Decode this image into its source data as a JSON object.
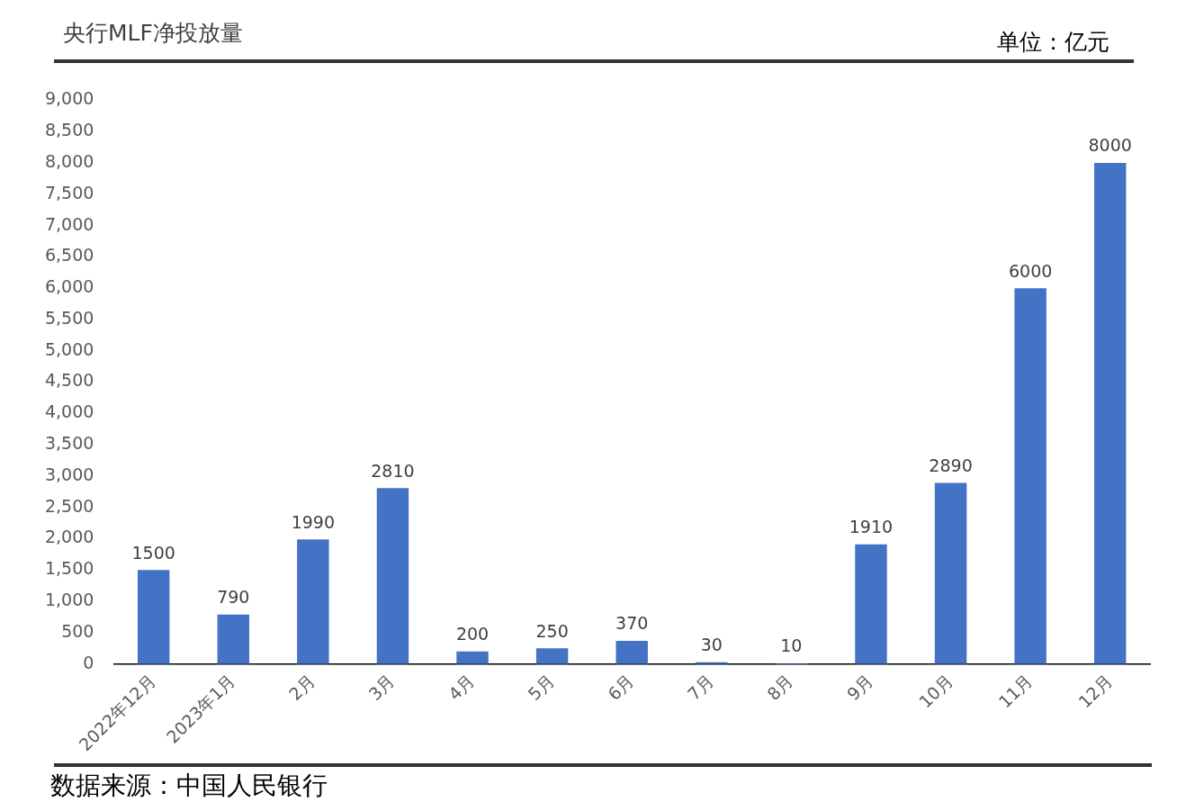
{
  "chart_data": {
    "type": "bar",
    "title": "央行MLF净投放量",
    "subtitle": "单位：亿元",
    "categories": [
      "2022年12月",
      "2023年1月",
      "2月",
      "3月",
      "4月",
      "5月",
      "6月",
      "7月",
      "8月",
      "9月",
      "10月",
      "11月",
      "12月"
    ],
    "values": [
      1500,
      790,
      1990,
      2810,
      200,
      250,
      370,
      30,
      10,
      1910,
      2890,
      6000,
      8000
    ],
    "color": "#4472c4",
    "ylim": [
      0,
      9000
    ],
    "yticks": [
      {
        "value": 0,
        "label": "0"
      },
      {
        "value": 500,
        "label": "500"
      },
      {
        "value": 1000,
        "label": "1,000"
      },
      {
        "value": 1500,
        "label": "1,500"
      },
      {
        "value": 2000,
        "label": "2,000"
      },
      {
        "value": 2500,
        "label": "2,500"
      },
      {
        "value": 3000,
        "label": "3,000"
      },
      {
        "value": 3500,
        "label": "3,500"
      },
      {
        "value": 4000,
        "label": "4,000"
      },
      {
        "value": 4500,
        "label": "4,500"
      },
      {
        "value": 5000,
        "label": "5,000"
      },
      {
        "value": 5500,
        "label": "5,500"
      },
      {
        "value": 6000,
        "label": "6,000"
      },
      {
        "value": 6500,
        "label": "6,500"
      },
      {
        "value": 7000,
        "label": "7,000"
      },
      {
        "value": 7500,
        "label": "7,500"
      },
      {
        "value": 8000,
        "label": "8,000"
      },
      {
        "value": 8500,
        "label": "8,500"
      },
      {
        "value": 9000,
        "label": "9,000"
      }
    ],
    "grid": false,
    "legend": false,
    "data_labels": true,
    "annotations": [
      "数据来源：中国人民银行"
    ]
  }
}
